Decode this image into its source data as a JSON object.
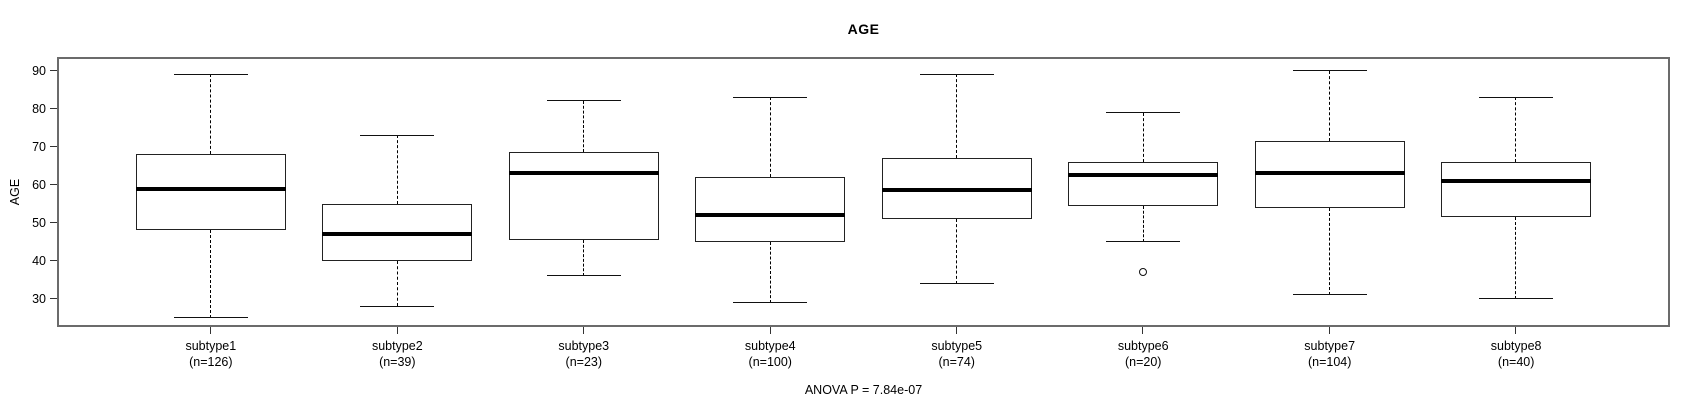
{
  "chart_data": {
    "type": "boxplot",
    "title": "AGE",
    "ylabel": "AGE",
    "xlabel": "",
    "ylim": [
      22.6,
      93.6
    ],
    "y_ticks": [
      30,
      40,
      50,
      60,
      70,
      80,
      90
    ],
    "grid": false,
    "legend": "none",
    "anova_label": "ANOVA P = 7.84e-07",
    "anova_p": "7.84e-07",
    "colors": {
      "line": "#000000",
      "box_fill": "#ffffff",
      "background": "#ffffff"
    },
    "groups": [
      {
        "label": "subtype1",
        "count_label": "(n=126)",
        "n": 126,
        "low": 25,
        "q1": 48,
        "median": 59,
        "q3": 68,
        "high": 89,
        "outliers": []
      },
      {
        "label": "subtype2",
        "count_label": "(n=39)",
        "n": 39,
        "low": 28,
        "q1": 40,
        "median": 47,
        "q3": 55,
        "high": 73,
        "outliers": []
      },
      {
        "label": "subtype3",
        "count_label": "(n=23)",
        "n": 23,
        "low": 36,
        "q1": 45.5,
        "median": 63,
        "q3": 68.5,
        "high": 82,
        "outliers": []
      },
      {
        "label": "subtype4",
        "count_label": "(n=100)",
        "n": 100,
        "low": 29,
        "q1": 45,
        "median": 52,
        "q3": 62,
        "high": 83,
        "outliers": []
      },
      {
        "label": "subtype5",
        "count_label": "(n=74)",
        "n": 74,
        "low": 34,
        "q1": 51,
        "median": 58.5,
        "q3": 67,
        "high": 89,
        "outliers": []
      },
      {
        "label": "subtype6",
        "count_label": "(n=20)",
        "n": 20,
        "low": 45,
        "q1": 54.5,
        "median": 62.5,
        "q3": 66,
        "high": 79,
        "outliers": [
          37
        ]
      },
      {
        "label": "subtype7",
        "count_label": "(n=104)",
        "n": 104,
        "low": 31,
        "q1": 54,
        "median": 63,
        "q3": 71.5,
        "high": 90,
        "outliers": []
      },
      {
        "label": "subtype8",
        "count_label": "(n=40)",
        "n": 40,
        "low": 30,
        "q1": 51.5,
        "median": 61,
        "q3": 66,
        "high": 83,
        "outliers": []
      }
    ]
  }
}
